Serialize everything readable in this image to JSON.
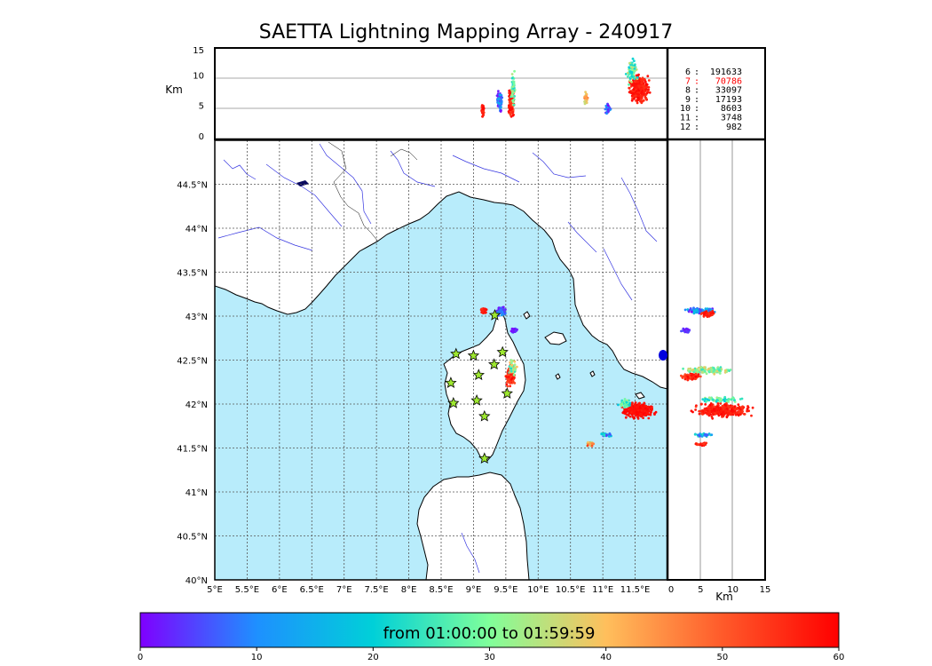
{
  "title": "SAETTA Lightning Mapping Array - 240917",
  "colorbar": {
    "label": "from 01:00:00 to 01:59:59",
    "ticks": [
      "0",
      "10",
      "20",
      "30",
      "40",
      "50",
      "60"
    ],
    "colors": [
      "#7f00ff",
      "#1e90ff",
      "#00d0d8",
      "#80ff9a",
      "#ffbf5c",
      "#ff5a2a",
      "#ff0000"
    ]
  },
  "units": {
    "alt_unit": "Km",
    "km_unit": "Km"
  },
  "map": {
    "lon_ticks": [
      "5°E",
      "5.5°E",
      "6°E",
      "6.5°E",
      "7°E",
      "7.5°E",
      "8°E",
      "8.5°E",
      "9°E",
      "9.5°E",
      "10°E",
      "10.5°E",
      "11°E",
      "11.5°E"
    ],
    "lat_ticks": [
      "44.5°N",
      "44°N",
      "43.5°N",
      "43°N",
      "42.5°N",
      "42°N",
      "41.5°N",
      "41°N",
      "40.5°N",
      "40°N"
    ],
    "lon_range": [
      5,
      12
    ],
    "lat_range": [
      40,
      45
    ],
    "sea_color": "#b8ecfb",
    "stations": [
      {
        "lon": 8.73,
        "lat": 42.57
      },
      {
        "lon": 9.0,
        "lat": 42.55
      },
      {
        "lon": 9.45,
        "lat": 42.59
      },
      {
        "lon": 8.65,
        "lat": 42.24
      },
      {
        "lon": 9.08,
        "lat": 42.33
      },
      {
        "lon": 9.32,
        "lat": 42.45
      },
      {
        "lon": 8.69,
        "lat": 42.01
      },
      {
        "lon": 9.05,
        "lat": 42.04
      },
      {
        "lon": 9.52,
        "lat": 42.12
      },
      {
        "lon": 9.17,
        "lat": 41.86
      },
      {
        "lon": 9.17,
        "lat": 41.38
      },
      {
        "lon": 9.33,
        "lat": 43.01
      }
    ]
  },
  "altitude_panel": {
    "yticks": [
      "0",
      "5",
      "10",
      "15"
    ],
    "ylim": [
      0,
      15
    ]
  },
  "lat_alt_panel": {
    "xticks": [
      "0",
      "5",
      "10",
      "15"
    ],
    "xlim": [
      0,
      15
    ]
  },
  "counts": [
    {
      "label": "6",
      "value": "191633",
      "color": "#000000"
    },
    {
      "label": "7",
      "value": "70786",
      "color": "#ff0000"
    },
    {
      "label": "8",
      "value": "33097",
      "color": "#000000"
    },
    {
      "label": "9",
      "value": "17193",
      "color": "#000000"
    },
    {
      "label": "10",
      "value": "8603",
      "color": "#000000"
    },
    {
      "label": "11",
      "value": "3748",
      "color": "#000000"
    },
    {
      "label": "12",
      "value": "982",
      "color": "#000000"
    }
  ]
}
